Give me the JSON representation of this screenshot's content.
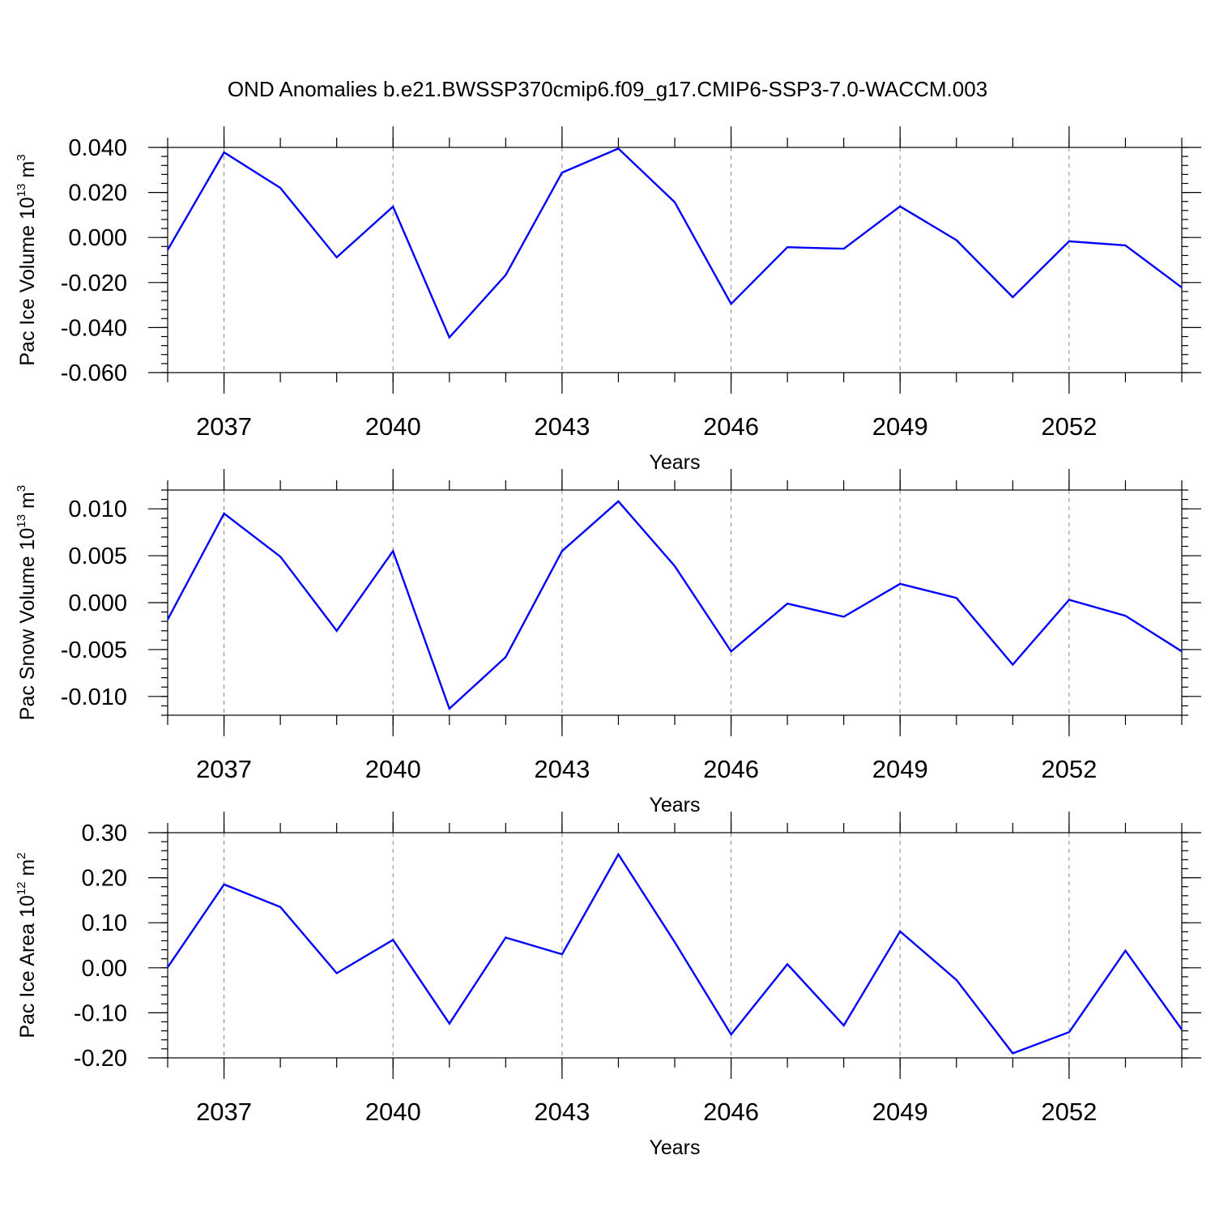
{
  "chart_data": {
    "title": "OND Anomalies b.e21.BWSSP370cmip6.f09_g17.CMIP6-SSP3-7.0-WACCM.003",
    "panels": [
      {
        "type": "line",
        "ylabel_main": "Pac Ice Volume 10",
        "ylabel_exp": "13",
        "ylabel_unit": " m",
        "ylabel_unit_exp": "3",
        "xlabel": "Years",
        "xlim": [
          2036,
          2054
        ],
        "ylim": [
          -0.06,
          0.04
        ],
        "yticks": [
          0.04,
          0.02,
          0.0,
          -0.02,
          -0.04,
          -0.06
        ],
        "ytick_labels": [
          "0.040",
          "0.020",
          "0.000",
          "-0.020",
          "-0.040",
          "-0.060"
        ],
        "yminor_step": 0.004,
        "series": [
          {
            "color": "#0000ff",
            "x": [
              2036,
              2037,
              2038,
              2039,
              2040,
              2041,
              2042,
              2043,
              2044,
              2045,
              2046,
              2047,
              2048,
              2049,
              2050,
              2051,
              2052,
              2053,
              2054
            ],
            "values": [
              -0.0055,
              0.0378,
              0.022,
              -0.0088,
              0.0137,
              -0.0444,
              -0.0167,
              0.0288,
              0.0395,
              0.0157,
              -0.0295,
              -0.0043,
              -0.005,
              0.0138,
              -0.0012,
              -0.0265,
              -0.0017,
              -0.0035,
              -0.0222
            ]
          }
        ]
      },
      {
        "type": "line",
        "ylabel_main": "Pac Snow Volume 10",
        "ylabel_exp": "13",
        "ylabel_unit": " m",
        "ylabel_unit_exp": "3",
        "xlabel": "Years",
        "xlim": [
          2036,
          2054
        ],
        "ylim": [
          -0.012,
          0.012
        ],
        "yticks": [
          0.01,
          0.005,
          0.0,
          -0.005,
          -0.01
        ],
        "ytick_labels": [
          "0.010",
          "0.005",
          "0.000",
          "-0.005",
          "-0.010"
        ],
        "yminor_step": 0.001,
        "series": [
          {
            "color": "#0000ff",
            "x": [
              2036,
              2037,
              2038,
              2039,
              2040,
              2041,
              2042,
              2043,
              2044,
              2045,
              2046,
              2047,
              2048,
              2049,
              2050,
              2051,
              2052,
              2053,
              2054
            ],
            "values": [
              -0.0018,
              0.0095,
              0.0049,
              -0.003,
              0.0055,
              -0.0113,
              -0.0058,
              0.0055,
              0.0108,
              0.0039,
              -0.0052,
              -0.0001,
              -0.0015,
              0.002,
              0.0005,
              -0.0066,
              0.0003,
              -0.0014,
              -0.0052
            ]
          }
        ]
      },
      {
        "type": "line",
        "ylabel_main": "Pac Ice Area 10",
        "ylabel_exp": "12",
        "ylabel_unit": " m",
        "ylabel_unit_exp": "2",
        "xlabel": "Years",
        "xlim": [
          2036,
          2054
        ],
        "ylim": [
          -0.2,
          0.3
        ],
        "yticks": [
          0.3,
          0.2,
          0.1,
          0.0,
          -0.1,
          -0.2
        ],
        "ytick_labels": [
          "0.30",
          "0.20",
          "0.10",
          "0.00",
          "-0.10",
          "-0.20"
        ],
        "yminor_step": 0.02,
        "series": [
          {
            "color": "#0000ff",
            "x": [
              2036,
              2037,
              2038,
              2039,
              2040,
              2041,
              2042,
              2043,
              2044,
              2045,
              2046,
              2047,
              2048,
              2049,
              2050,
              2051,
              2052,
              2053,
              2054
            ],
            "values": [
              0.001,
              0.185,
              0.135,
              -0.012,
              0.062,
              -0.124,
              0.067,
              0.03,
              0.252,
              0.057,
              -0.148,
              0.008,
              -0.128,
              0.081,
              -0.027,
              -0.19,
              -0.143,
              0.038,
              -0.137
            ]
          }
        ]
      }
    ],
    "xticks": [
      2037,
      2040,
      2043,
      2046,
      2049,
      2052
    ],
    "xtick_labels": [
      "2037",
      "2040",
      "2043",
      "2046",
      "2049",
      "2052"
    ],
    "grid": "dashed vertical at major x ticks"
  }
}
